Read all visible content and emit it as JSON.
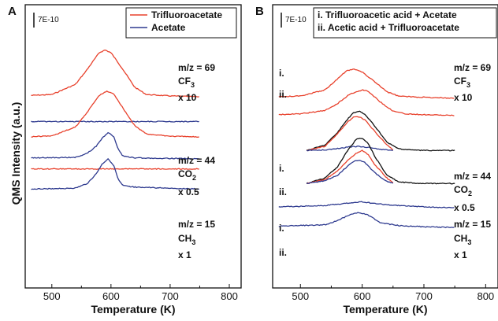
{
  "figure": {
    "ylabel": "QMS Intensity (a.u.)",
    "colors": {
      "red": "#e8412c",
      "blue": "#2e3a8f",
      "black": "#111111"
    }
  },
  "panels": [
    {
      "letter": "A",
      "scale_bar_label": "7E-10",
      "legend": [
        "Trifluoroacetate",
        "Acetate"
      ],
      "groups": [
        {
          "lines": [
            "m/z = 69",
            "CF",
            "x 10"
          ],
          "sub": "3",
          "tags": []
        },
        {
          "lines": [
            "m/z = 44",
            "CO",
            "x 0.5"
          ],
          "sub": "2",
          "tags": []
        },
        {
          "lines": [
            "m/z = 15",
            "CH",
            "x 1"
          ],
          "sub": "3",
          "tags": []
        }
      ]
    },
    {
      "letter": "B",
      "scale_bar_label": "7E-10",
      "legend": [
        "i.  Trifluoroacetic acid + Acetate",
        "ii. Acetic acid + Trifluoroacetate"
      ],
      "groups": [
        {
          "lines": [
            "m/z = 69",
            "CF",
            "x 10"
          ],
          "sub": "3",
          "tags": [
            "i.",
            "ii."
          ]
        },
        {
          "lines": [
            "m/z = 44",
            "CO",
            "x 0.5"
          ],
          "sub": "2",
          "tags": [
            "i.",
            "ii."
          ]
        },
        {
          "lines": [
            "m/z = 15",
            "CH",
            "x 1"
          ],
          "sub": "3",
          "tags": [
            "i.",
            "ii."
          ]
        }
      ]
    }
  ],
  "chart_data": [
    {
      "type": "line",
      "panel": "A",
      "xlabel": "Temperature (K)",
      "xlim": [
        455,
        820
      ],
      "xticks": [
        500,
        600,
        700,
        800
      ],
      "y_units": "offset intensity (a.u.), scale bar 7E-10",
      "series": [
        {
          "name": "Trifluoroacetate",
          "color": "red",
          "label": "m/z = 69 CF3 x 10",
          "x": [
            465,
            500,
            540,
            560,
            580,
            590,
            600,
            620,
            640,
            660,
            700,
            750
          ],
          "y": [
            30.5,
            30.8,
            34.5,
            40.0,
            46.0,
            47.0,
            46.0,
            40.0,
            33.5,
            30.8,
            30.3,
            30.0
          ]
        },
        {
          "name": "Acetate",
          "color": "blue",
          "label": "m/z = 69 CF3 x 10",
          "x": [
            465,
            750
          ],
          "y": [
            21.0,
            21.0
          ]
        },
        {
          "name": "Trifluoroacetate",
          "color": "red",
          "label": "m/z = 44 CO2 x 0.5",
          "x": [
            465,
            500,
            540,
            560,
            580,
            593,
            605,
            620,
            640,
            660,
            700,
            750
          ],
          "y": [
            15.5,
            15.8,
            19.0,
            24.5,
            30.5,
            32.0,
            31.0,
            26.0,
            19.5,
            16.5,
            15.7,
            15.4
          ]
        },
        {
          "name": "Acetate",
          "color": "blue",
          "label": "m/z = 44 CO2 x 0.5",
          "x": [
            465,
            540,
            560,
            575,
            585,
            595,
            605,
            612,
            620,
            640,
            700,
            750
          ],
          "y": [
            7.8,
            8.0,
            9.5,
            12.0,
            15.0,
            17.0,
            15.5,
            11.0,
            8.5,
            7.8,
            7.6,
            7.5
          ]
        },
        {
          "name": "Trifluoroacetate",
          "color": "red",
          "label": "m/z = 15 CH3 x 1",
          "x": [
            465,
            750
          ],
          "y": [
            3.8,
            3.8
          ]
        },
        {
          "name": "Acetate",
          "color": "blue",
          "label": "m/z = 15 CH3 x 1",
          "x": [
            465,
            540,
            560,
            575,
            585,
            595,
            605,
            612,
            620,
            640,
            700,
            750
          ],
          "y": [
            -3.5,
            -3.2,
            -1.5,
            2.0,
            5.5,
            7.5,
            5.0,
            0.0,
            -2.3,
            -2.8,
            -3.2,
            -3.5
          ]
        }
      ]
    },
    {
      "type": "line",
      "panel": "B",
      "xlabel": "Temperature (K)",
      "xlim": [
        455,
        820
      ],
      "xticks": [
        500,
        600,
        700,
        800
      ],
      "y_units": "offset intensity (a.u.), scale bar 7E-10",
      "series": [
        {
          "name": "i.",
          "color": "red",
          "label": "m/z = 69 CF3 x 10",
          "x": [
            465,
            500,
            540,
            560,
            575,
            588,
            600,
            620,
            640,
            660,
            700,
            750
          ],
          "y": [
            30.0,
            30.3,
            32.5,
            36.5,
            39.5,
            40.0,
            39.0,
            35.5,
            31.8,
            30.2,
            29.8,
            29.5
          ]
        },
        {
          "name": "ii.",
          "color": "red",
          "label": "m/z = 69 CF3 x 10",
          "x": [
            465,
            500,
            540,
            560,
            580,
            600,
            610,
            630,
            650,
            670,
            700,
            750
          ],
          "y": [
            23.5,
            23.8,
            25.0,
            27.5,
            31.0,
            32.5,
            32.0,
            28.0,
            24.8,
            23.8,
            23.5,
            23.2
          ]
        },
        {
          "name": "i. sum",
          "color": "black",
          "label": "m/z = 44 CO2 x 0.5",
          "x": [
            510,
            540,
            560,
            575,
            585,
            595,
            605,
            620,
            640,
            660,
            700,
            750
          ],
          "y": [
            10.5,
            12.5,
            17.0,
            21.5,
            24.0,
            24.8,
            23.5,
            19.5,
            13.5,
            11.0,
            10.5,
            10.5
          ]
        },
        {
          "name": "i.",
          "color": "red",
          "label": "m/z = 44 CO2 x 0.5",
          "x": [
            510,
            540,
            560,
            575,
            585,
            595,
            605,
            620,
            640,
            650
          ],
          "y": [
            10.5,
            12.0,
            16.5,
            20.5,
            22.5,
            22.8,
            21.5,
            17.5,
            12.5,
            10.8
          ]
        },
        {
          "name": "i.",
          "color": "blue",
          "label": "m/z = 44 CO2 x 0.5",
          "x": [
            510,
            540,
            560,
            580,
            595,
            610,
            630,
            650
          ],
          "y": [
            10.5,
            10.7,
            11.2,
            11.8,
            12.0,
            11.6,
            10.9,
            10.5
          ]
        },
        {
          "name": "ii. sum",
          "color": "black",
          "label": "m/z = 44 CO2 x 0.5",
          "x": [
            510,
            540,
            560,
            575,
            590,
            600,
            610,
            620,
            640,
            660,
            700,
            750
          ],
          "y": [
            -1.5,
            0.5,
            4.5,
            10.0,
            14.5,
            15.0,
            13.0,
            8.5,
            1.5,
            -1.0,
            -1.5,
            -1.5
          ]
        },
        {
          "name": "ii.",
          "color": "red",
          "label": "m/z = 44 CO2 x 0.5",
          "x": [
            510,
            540,
            560,
            575,
            590,
            600,
            610,
            620,
            640,
            650
          ],
          "y": [
            -1.5,
            0.0,
            3.0,
            6.5,
            9.5,
            10.5,
            9.0,
            5.5,
            0.5,
            -1.2
          ]
        },
        {
          "name": "ii.",
          "color": "blue",
          "label": "m/z = 44 CO2 x 0.5",
          "x": [
            510,
            540,
            560,
            575,
            585,
            595,
            605,
            620,
            640,
            650
          ],
          "y": [
            -1.5,
            -0.5,
            1.5,
            4.5,
            6.5,
            7.0,
            6.0,
            2.5,
            -0.8,
            -1.4
          ]
        },
        {
          "name": "i.",
          "color": "blue",
          "label": "m/z = 15 CH3 x 1",
          "x": [
            465,
            540,
            580,
            600,
            640,
            700,
            750
          ],
          "y": [
            -10.0,
            -9.5,
            -8.5,
            -8.2,
            -9.2,
            -10.0,
            -10.3
          ]
        },
        {
          "name": "ii.",
          "color": "blue",
          "label": "m/z = 15 CH3 x 1",
          "x": [
            465,
            540,
            560,
            580,
            595,
            610,
            630,
            660,
            700,
            750
          ],
          "y": [
            -17.0,
            -16.5,
            -15.0,
            -12.8,
            -12.0,
            -13.0,
            -15.8,
            -16.8,
            -17.2,
            -17.5
          ]
        }
      ]
    }
  ]
}
